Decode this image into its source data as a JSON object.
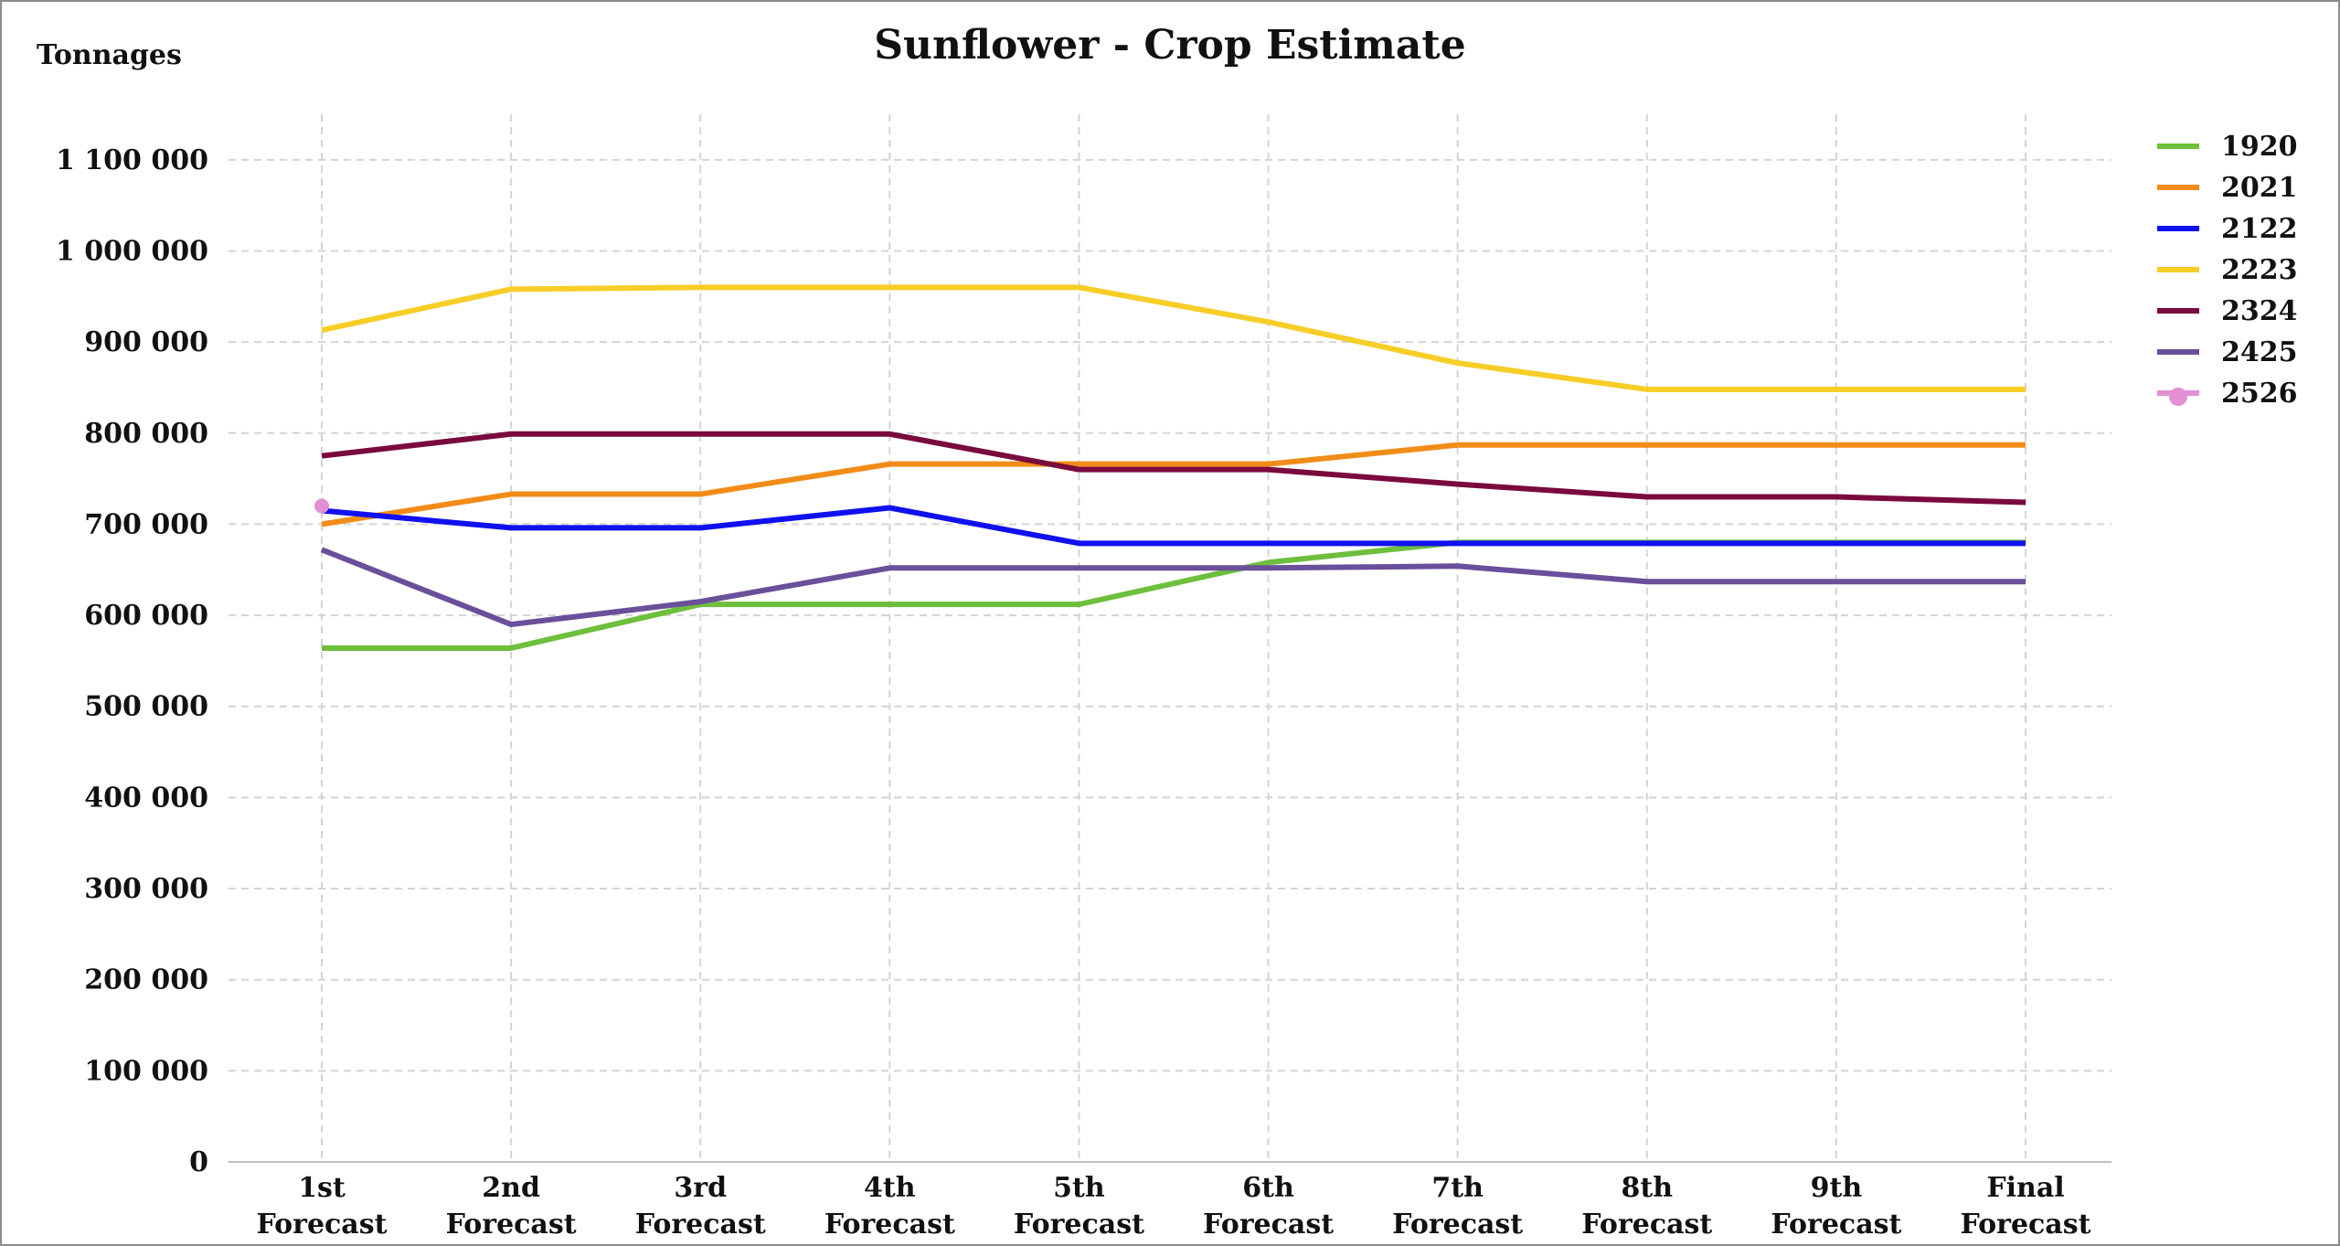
{
  "chart_data": {
    "type": "line",
    "title": "Sunflower - Crop Estimate",
    "ylabel": "Tonnages",
    "xlabel": "",
    "categories": [
      [
        "1st",
        "Forecast"
      ],
      [
        "2nd",
        "Forecast"
      ],
      [
        "3rd",
        "Forecast"
      ],
      [
        "4th",
        "Forecast"
      ],
      [
        "5th",
        "Forecast"
      ],
      [
        "6th",
        "Forecast"
      ],
      [
        "7th",
        "Forecast"
      ],
      [
        "8th",
        "Forecast"
      ],
      [
        "9th",
        "Forecast"
      ],
      [
        "Final",
        "Forecast"
      ]
    ],
    "ylim": [
      0,
      1150000
    ],
    "yticks": [
      0,
      100000,
      200000,
      300000,
      400000,
      500000,
      600000,
      700000,
      800000,
      900000,
      1000000,
      1100000
    ],
    "ytick_labels": [
      "0",
      "100 000",
      "200 000",
      "300 000",
      "400 000",
      "500 000",
      "600 000",
      "700 000",
      "800 000",
      "900 000",
      "1 000 000",
      "1 100 000"
    ],
    "grid": true,
    "legend_position": "right",
    "series": [
      {
        "name": "1920",
        "color": "#6dbf3c",
        "marker": false,
        "values": [
          564000,
          564000,
          612000,
          612000,
          612000,
          658000,
          680000,
          680000,
          680000,
          680000
        ]
      },
      {
        "name": "2021",
        "color": "#f28c18",
        "marker": false,
        "values": [
          700000,
          733000,
          733000,
          766000,
          766000,
          766000,
          787000,
          787000,
          787000,
          787000
        ]
      },
      {
        "name": "2122",
        "color": "#1010f0",
        "marker": false,
        "values": [
          715000,
          696000,
          696000,
          718000,
          679000,
          679000,
          679000,
          679000,
          679000,
          679000
        ]
      },
      {
        "name": "2223",
        "color": "#f7cd28",
        "marker": false,
        "values": [
          913000,
          958000,
          960000,
          960000,
          960000,
          922000,
          877000,
          848000,
          848000,
          848000
        ]
      },
      {
        "name": "2324",
        "color": "#7a0a3e",
        "marker": false,
        "values": [
          775000,
          799000,
          799000,
          799000,
          760000,
          760000,
          744000,
          730000,
          730000,
          724000
        ]
      },
      {
        "name": "2425",
        "color": "#6a4f9a",
        "marker": false,
        "values": [
          672000,
          590000,
          615000,
          652000,
          652000,
          652000,
          654000,
          637000,
          637000,
          637000
        ]
      },
      {
        "name": "2526",
        "color": "#e38fd3",
        "marker": true,
        "values": [
          720000,
          null,
          null,
          null,
          null,
          null,
          null,
          null,
          null,
          null
        ]
      }
    ]
  }
}
